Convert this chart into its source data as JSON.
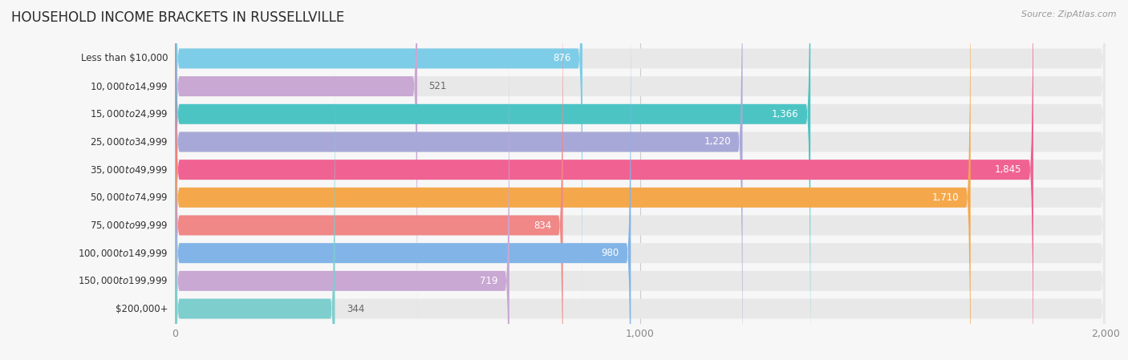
{
  "title": "HOUSEHOLD INCOME BRACKETS IN RUSSELLVILLE",
  "source": "Source: ZipAtlas.com",
  "categories": [
    "Less than $10,000",
    "$10,000 to $14,999",
    "$15,000 to $24,999",
    "$25,000 to $34,999",
    "$35,000 to $49,999",
    "$50,000 to $74,999",
    "$75,000 to $99,999",
    "$100,000 to $149,999",
    "$150,000 to $199,999",
    "$200,000+"
  ],
  "values": [
    876,
    521,
    1366,
    1220,
    1845,
    1710,
    834,
    980,
    719,
    344
  ],
  "colors": [
    "#7ecde8",
    "#c9a8d4",
    "#4dc4c4",
    "#a8a8d8",
    "#f06292",
    "#f5a84b",
    "#f08888",
    "#82b4e8",
    "#c9a8d4",
    "#7ecece"
  ],
  "xlim": [
    0,
    2000
  ],
  "xticks": [
    0,
    1000,
    2000
  ],
  "xticklabels": [
    "0",
    "1,000",
    "2,000"
  ],
  "background_color": "#f7f7f7",
  "bar_bg_color": "#e8e8e8",
  "title_color": "#2a2a2a",
  "label_color": "#444444",
  "value_inside_threshold": 600
}
